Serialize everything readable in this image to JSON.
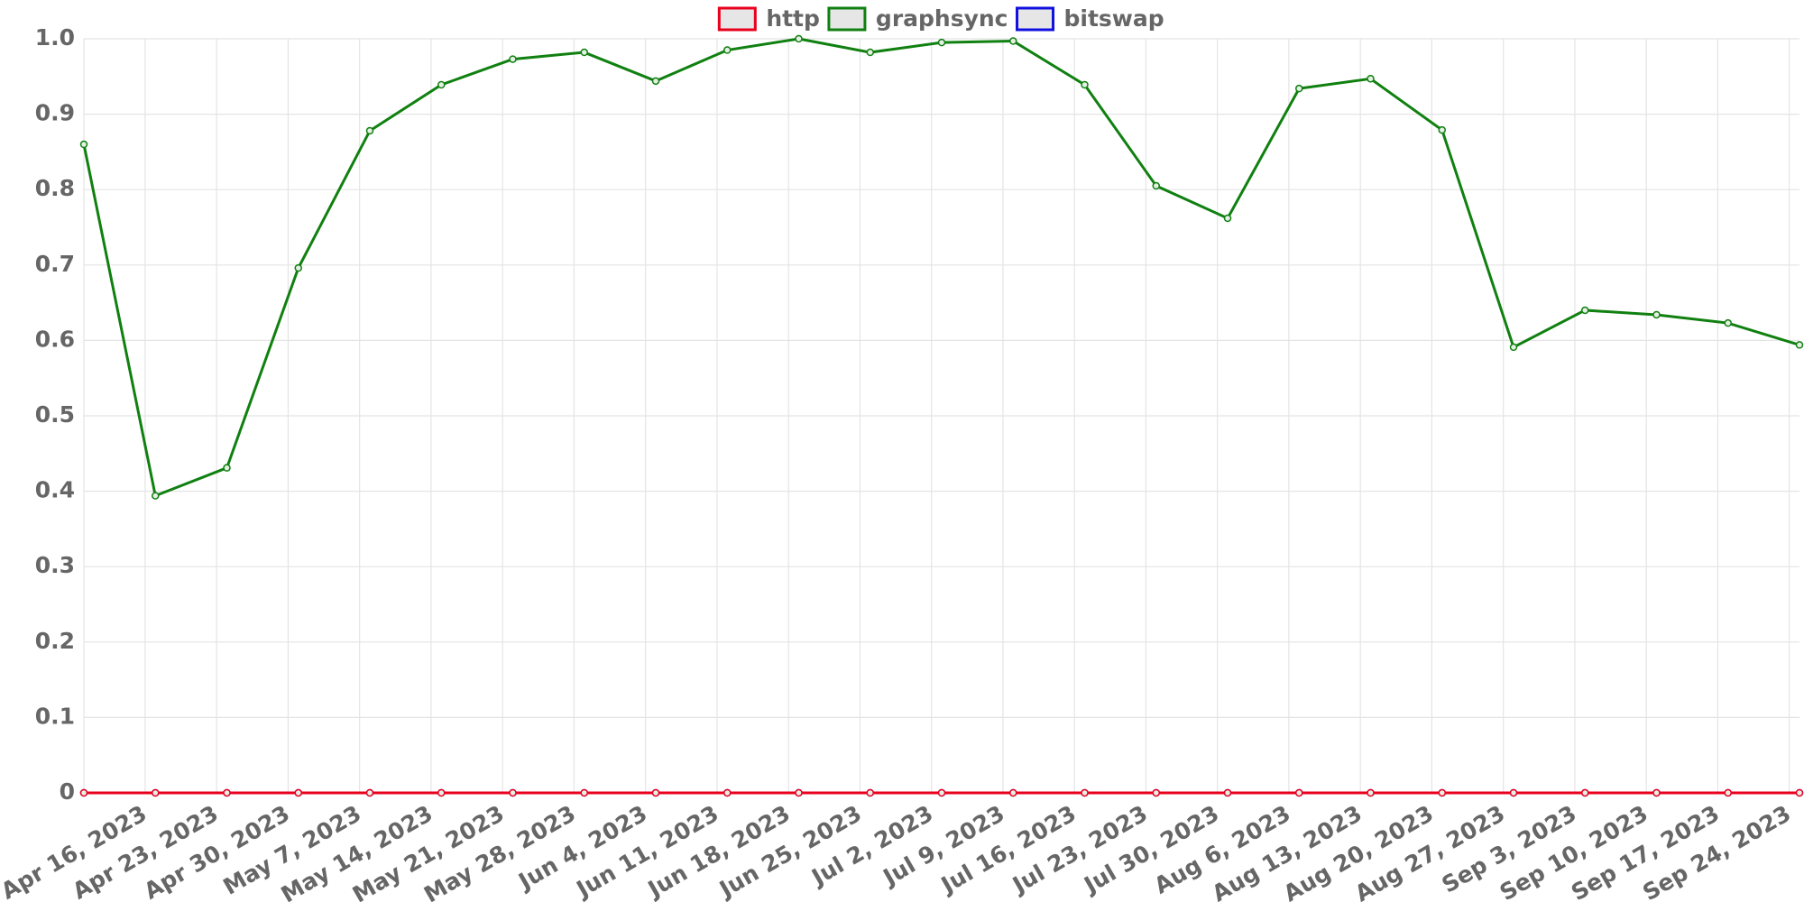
{
  "chart_data": {
    "type": "line",
    "x": [
      "2023-04-10",
      "2023-04-17",
      "2023-04-24",
      "2023-05-01",
      "2023-05-08",
      "2023-05-15",
      "2023-05-22",
      "2023-05-29",
      "2023-06-05",
      "2023-06-12",
      "2023-06-19",
      "2023-06-26",
      "2023-07-03",
      "2023-07-10",
      "2023-07-17",
      "2023-07-24",
      "2023-07-31",
      "2023-08-07",
      "2023-08-14",
      "2023-08-21",
      "2023-08-28",
      "2023-09-04",
      "2023-09-11",
      "2023-09-18",
      "2023-09-25"
    ],
    "series": [
      {
        "name": "http",
        "color": "#e8001c",
        "values": [
          0,
          0,
          0,
          0,
          0,
          0,
          0,
          0,
          0,
          0,
          0,
          0,
          0,
          0,
          0,
          0,
          0,
          0,
          0,
          0,
          0,
          0,
          0,
          0,
          0
        ]
      },
      {
        "name": "graphsync",
        "color": "#108010",
        "values": [
          0.86,
          0.394,
          0.431,
          0.696,
          0.878,
          0.939,
          0.973,
          0.982,
          0.944,
          0.985,
          1.0,
          0.982,
          0.995,
          0.997,
          0.939,
          0.805,
          0.762,
          0.934,
          0.947,
          0.879,
          0.591,
          0.64,
          0.634,
          0.623,
          0.594
        ]
      },
      {
        "name": "bitswap",
        "color": "#1010e0",
        "values": [
          0,
          0,
          0,
          0,
          0,
          0,
          0,
          0,
          0,
          0,
          0,
          0,
          0,
          0,
          0,
          0,
          0,
          0,
          0,
          0,
          0,
          0,
          0,
          0,
          0
        ]
      }
    ],
    "xlim": [
      "2023-04-10",
      "2023-09-25"
    ],
    "xticks": [
      {
        "value": "2023-04-16",
        "label": "Apr 16, 2023"
      },
      {
        "value": "2023-04-23",
        "label": "Apr 23, 2023"
      },
      {
        "value": "2023-04-30",
        "label": "Apr 30, 2023"
      },
      {
        "value": "2023-05-07",
        "label": "May 7, 2023"
      },
      {
        "value": "2023-05-14",
        "label": "May 14, 2023"
      },
      {
        "value": "2023-05-21",
        "label": "May 21, 2023"
      },
      {
        "value": "2023-05-28",
        "label": "May 28, 2023"
      },
      {
        "value": "2023-06-04",
        "label": "Jun 4, 2023"
      },
      {
        "value": "2023-06-11",
        "label": "Jun 11, 2023"
      },
      {
        "value": "2023-06-18",
        "label": "Jun 18, 2023"
      },
      {
        "value": "2023-06-25",
        "label": "Jun 25, 2023"
      },
      {
        "value": "2023-07-02",
        "label": "Jul 2, 2023"
      },
      {
        "value": "2023-07-09",
        "label": "Jul 9, 2023"
      },
      {
        "value": "2023-07-16",
        "label": "Jul 16, 2023"
      },
      {
        "value": "2023-07-23",
        "label": "Jul 23, 2023"
      },
      {
        "value": "2023-07-30",
        "label": "Jul 30, 2023"
      },
      {
        "value": "2023-08-06",
        "label": "Aug 6, 2023"
      },
      {
        "value": "2023-08-13",
        "label": "Aug 13, 2023"
      },
      {
        "value": "2023-08-20",
        "label": "Aug 20, 2023"
      },
      {
        "value": "2023-08-27",
        "label": "Aug 27, 2023"
      },
      {
        "value": "2023-09-03",
        "label": "Sep 3, 2023"
      },
      {
        "value": "2023-09-10",
        "label": "Sep 10, 2023"
      },
      {
        "value": "2023-09-17",
        "label": "Sep 17, 2023"
      },
      {
        "value": "2023-09-24",
        "label": "Sep 24, 2023"
      }
    ],
    "ylim": [
      0,
      1
    ],
    "yticks": [
      0,
      0.1,
      0.2,
      0.3,
      0.4,
      0.5,
      0.6,
      0.7,
      0.8,
      0.9,
      {
        "value": 1,
        "label": "1.0"
      }
    ],
    "grid": true,
    "legend": "top"
  }
}
